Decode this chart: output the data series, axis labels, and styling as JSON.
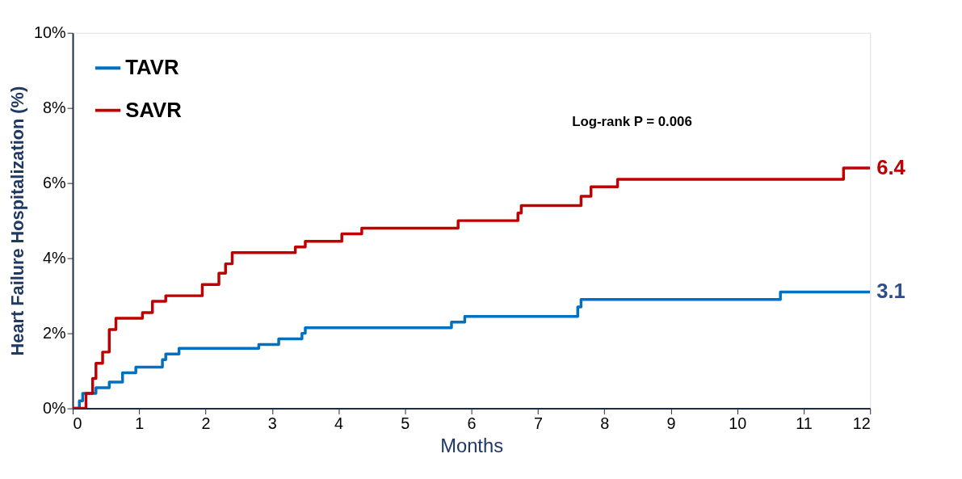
{
  "chart_data": {
    "type": "step",
    "xlabel": "Months",
    "ylabel": "Heart Failure Hospitalization (%)",
    "xlim": [
      0,
      12
    ],
    "xticks": [
      0,
      1,
      2,
      3,
      4,
      5,
      6,
      7,
      8,
      9,
      10,
      11,
      12
    ],
    "ylim": [
      0,
      10
    ],
    "yticks": [
      {
        "value": 0,
        "label": "0%"
      },
      {
        "value": 2,
        "label": "2%"
      },
      {
        "value": 4,
        "label": "4%"
      },
      {
        "value": 6,
        "label": "6%"
      },
      {
        "value": 8,
        "label": "8%"
      },
      {
        "value": 10,
        "label": "10%"
      }
    ],
    "grid": false,
    "legend": "top left",
    "line_style": "solid",
    "marker": "none",
    "series": [
      {
        "name": "TAVR",
        "color": "#0070c0",
        "x": [
          0,
          0.1,
          0.15,
          0.35,
          0.55,
          0.75,
          0.95,
          1.35,
          1.4,
          1.6,
          2.8,
          3.1,
          3.45,
          3.5,
          5.7,
          5.9,
          7.6,
          7.65,
          10.65,
          12
        ],
        "values": [
          0,
          0.2,
          0.4,
          0.55,
          0.7,
          0.95,
          1.1,
          1.3,
          1.45,
          1.6,
          1.7,
          1.85,
          2.0,
          2.15,
          2.3,
          2.45,
          2.7,
          2.9,
          3.1,
          3.1
        ]
      },
      {
        "name": "SAVR",
        "color": "#c00000",
        "x": [
          0,
          0.15,
          0.2,
          0.3,
          0.35,
          0.45,
          0.55,
          0.65,
          1.05,
          1.2,
          1.4,
          1.95,
          2.2,
          2.3,
          2.4,
          3.35,
          3.5,
          4.05,
          4.35,
          5.8,
          6.7,
          6.75,
          7.65,
          7.8,
          8.2,
          11.6,
          12
        ],
        "values": [
          0,
          0,
          0.4,
          0.8,
          1.2,
          1.5,
          2.1,
          2.4,
          2.55,
          2.85,
          3.0,
          3.3,
          3.6,
          3.85,
          4.15,
          4.3,
          4.45,
          4.65,
          4.8,
          5.0,
          5.2,
          5.4,
          5.65,
          5.9,
          6.1,
          6.4,
          6.4
        ]
      }
    ],
    "annotations": [
      "Log-rank P = 0.006",
      {
        "text": "6.4",
        "x": 12,
        "y": 6.4
      },
      {
        "text": "3.1",
        "x": 12,
        "y": 3.1
      }
    ]
  }
}
